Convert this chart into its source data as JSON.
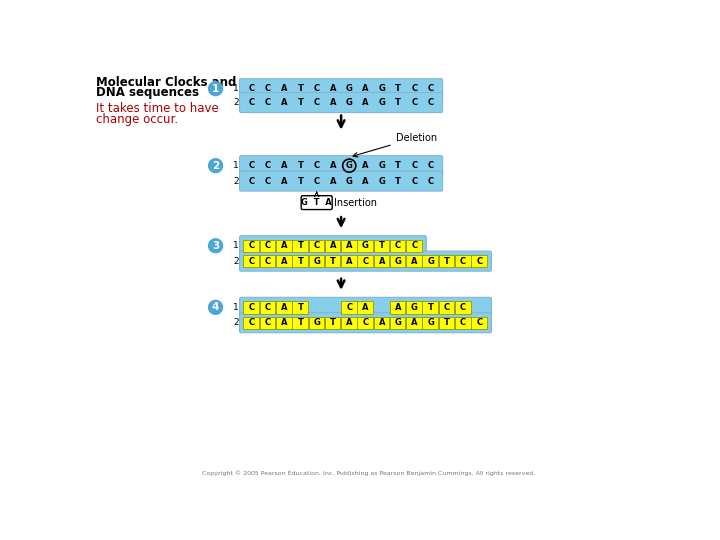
{
  "background": "#ffffff",
  "light_blue": "#87CEEB",
  "yellow": "#FFFF00",
  "circle_blue": "#4da6d6",
  "copyright": "Copyright © 2005 Pearson Education, Inc. Publishing as Pearson Benjamin Cummings. All rights reserved.",
  "title_line1": "Molecular Clocks and",
  "title_line2": "DNA sequences",
  "subtitle_line1": "It takes time to have",
  "subtitle_line2": "change occur.",
  "step1_seq1": [
    "C",
    "C",
    "A",
    "T",
    "C",
    "A",
    "G",
    "A",
    "G",
    "T",
    "C",
    "C"
  ],
  "step1_seq2": [
    "C",
    "C",
    "A",
    "T",
    "C",
    "A",
    "G",
    "A",
    "G",
    "T",
    "C",
    "C"
  ],
  "step2_seq1": [
    "C",
    "C",
    "A",
    "T",
    "C",
    "A",
    "G",
    "A",
    "G",
    "T",
    "C",
    "C"
  ],
  "step2_seq2": [
    "C",
    "C",
    "A",
    "T",
    "C",
    "A",
    "G",
    "A",
    "G",
    "T",
    "C",
    "C"
  ],
  "step2_deletion_idx": 6,
  "step3_seq1": [
    "C",
    "C",
    "A",
    "T",
    "C",
    "A",
    "A",
    "G",
    "T",
    "C",
    "C"
  ],
  "step3_seq2": [
    "C",
    "C",
    "A",
    "T",
    "G",
    "T",
    "A",
    "C",
    "A",
    "G",
    "A",
    "G",
    "T",
    "C",
    "C"
  ],
  "step4_seq2": [
    "C",
    "C",
    "A",
    "T",
    "G",
    "T",
    "A",
    "C",
    "A",
    "G",
    "A",
    "G",
    "T",
    "C",
    "C"
  ],
  "step4_seq1_letters": [
    "C",
    "C",
    "A",
    "T",
    "",
    "",
    "C",
    "A",
    "",
    "A",
    "G",
    "T",
    "C",
    "C",
    ""
  ],
  "step4_seq1_yellow": [
    true,
    true,
    true,
    true,
    false,
    false,
    true,
    true,
    false,
    true,
    true,
    true,
    true,
    true,
    false
  ]
}
